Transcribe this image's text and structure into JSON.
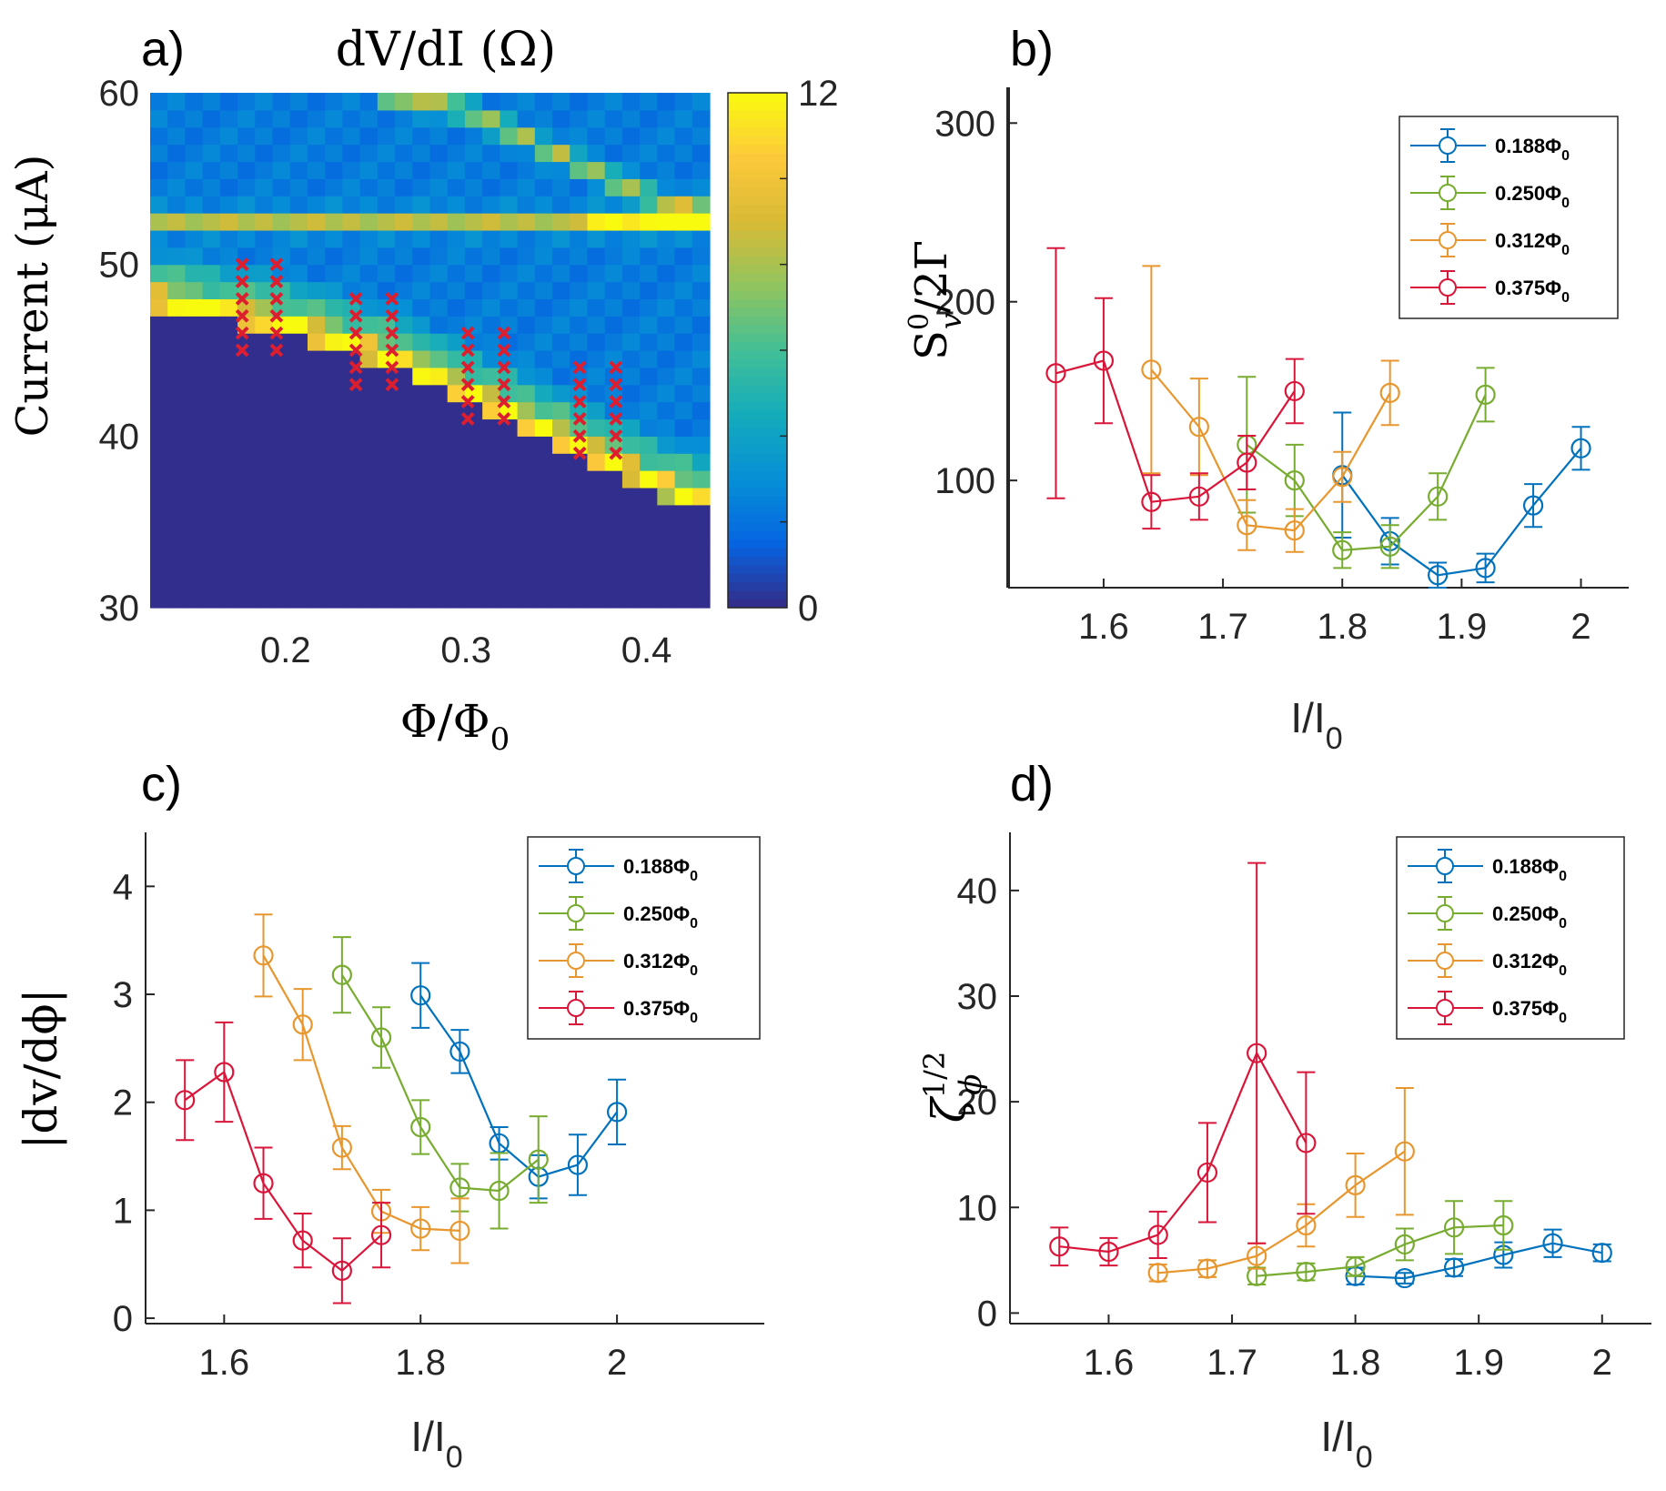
{
  "colors": {
    "blue": "#0072BD",
    "green": "#77AC30",
    "orange": "#EDB120",
    "orange_line": "#E8962E",
    "red": "#D9163A",
    "marker": "#DD1E2F",
    "axis": "#262626"
  },
  "chart_data": [
    {
      "panel": "a)",
      "type": "heatmap",
      "title": "dV/dI (Ω)",
      "xlabel": "Φ/Φ",
      "xlabel_sub": "0",
      "ylabel": "Current (μA)",
      "xlim": [
        0.125,
        0.435
      ],
      "ylim": [
        30,
        60
      ],
      "xticks": [
        0.2,
        0.3,
        0.4
      ],
      "xtick_labels": [
        "0.2",
        "0.3",
        "0.4"
      ],
      "yticks": [
        30,
        40,
        50,
        60
      ],
      "ytick_labels": [
        "30",
        "40",
        "50",
        "60"
      ],
      "colorbar": {
        "min": 0,
        "max": 12,
        "tick_labels": [
          "0",
          "12"
        ],
        "colormap": "parula"
      },
      "bands": [
        {
          "name": "lower band",
          "phi": [
            0.125,
            0.2,
            0.26,
            0.3,
            0.34,
            0.4,
            0.435
          ],
          "current": [
            48,
            46.5,
            44.5,
            42.5,
            40.5,
            37.5,
            36
          ],
          "peak_value": 10
        },
        {
          "name": "upper flat band",
          "phi": [
            0.125,
            0.435
          ],
          "current": [
            52.5,
            52.5
          ],
          "peak_value": 6
        },
        {
          "name": "upper curved band",
          "phi": [
            0.25,
            0.3,
            0.33,
            0.36,
            0.4,
            0.435
          ],
          "current": [
            60,
            59,
            57.5,
            56,
            54,
            53
          ],
          "peak_value": 6
        }
      ],
      "markers": {
        "symbol": "x",
        "columns": [
          {
            "phi": 0.176,
            "current": [
              45,
              46,
              47,
              48,
              49,
              50
            ]
          },
          {
            "phi": 0.195,
            "current": [
              45,
              46,
              47,
              48,
              49,
              50
            ]
          },
          {
            "phi": 0.239,
            "current": [
              43,
              44,
              45,
              46,
              47,
              48
            ]
          },
          {
            "phi": 0.259,
            "current": [
              43,
              44,
              45,
              46,
              47,
              48
            ]
          },
          {
            "phi": 0.301,
            "current": [
              41,
              42,
              43,
              44,
              45,
              46
            ]
          },
          {
            "phi": 0.321,
            "current": [
              41,
              42,
              43,
              44,
              45,
              46
            ]
          },
          {
            "phi": 0.363,
            "current": [
              39,
              40,
              41,
              42,
              43,
              44
            ]
          },
          {
            "phi": 0.383,
            "current": [
              39,
              40,
              41,
              42,
              43,
              44
            ]
          }
        ]
      }
    },
    {
      "panel": "b)",
      "type": "line",
      "xlabel": "I/I",
      "xlabel_sub": "0",
      "ylabel_main": "S",
      "ylabel_sup": "0",
      "ylabel_sub": "v",
      "ylabel_rest": "/2Γ",
      "xlim": [
        1.52,
        2.04
      ],
      "ylim": [
        40,
        320
      ],
      "xticks": [
        1.6,
        1.7,
        1.8,
        1.9,
        2
      ],
      "xtick_labels": [
        "1.6",
        "1.7",
        "1.8",
        "1.9",
        "2"
      ],
      "yticks": [
        100,
        200,
        300
      ],
      "ytick_labels": [
        "100",
        "200",
        "300"
      ],
      "legend": "top-right",
      "series": [
        {
          "name": "0.188Φ",
          "sub": "0",
          "color_key": "blue",
          "x": [
            1.8,
            1.84,
            1.88,
            1.92,
            1.96,
            2.0
          ],
          "y": [
            103,
            66,
            47,
            51,
            86,
            118
          ],
          "err": [
            35,
            13,
            7,
            8,
            12,
            12
          ]
        },
        {
          "name": "0.250Φ",
          "sub": "0",
          "color_key": "green",
          "x": [
            1.72,
            1.76,
            1.8,
            1.84,
            1.88,
            1.92
          ],
          "y": [
            120,
            100,
            61,
            63,
            91,
            148
          ],
          "err": [
            38,
            20,
            10,
            12,
            13,
            15
          ]
        },
        {
          "name": "0.312Φ",
          "sub": "0",
          "color_key": "orange_line",
          "x": [
            1.64,
            1.68,
            1.72,
            1.76,
            1.8,
            1.84
          ],
          "y": [
            162,
            130,
            75,
            72,
            102,
            149
          ],
          "err": [
            58,
            27,
            14,
            12,
            14,
            18
          ]
        },
        {
          "name": "0.375Φ",
          "sub": "0",
          "color_key": "red",
          "x": [
            1.56,
            1.6,
            1.64,
            1.68,
            1.72,
            1.76
          ],
          "y": [
            160,
            167,
            88,
            91,
            110,
            150
          ],
          "err": [
            70,
            35,
            15,
            13,
            15,
            18
          ]
        }
      ]
    },
    {
      "panel": "c)",
      "type": "line",
      "xlabel": "I/I",
      "xlabel_sub": "0",
      "ylabel": "|dv/dϕ|",
      "xlim": [
        1.52,
        2.15
      ],
      "ylim": [
        -0.05,
        4.5
      ],
      "xticks": [
        1.6,
        1.8,
        2
      ],
      "xtick_labels": [
        "1.6",
        "1.8",
        "2"
      ],
      "yticks": [
        0,
        1,
        2,
        3,
        4
      ],
      "ytick_labels": [
        "0",
        "1",
        "2",
        "3",
        "4"
      ],
      "legend": "top-right",
      "series": [
        {
          "name": "0.188Φ",
          "sub": "0",
          "color_key": "blue",
          "x": [
            1.8,
            1.84,
            1.88,
            1.92,
            1.96,
            2.0
          ],
          "y": [
            2.99,
            2.47,
            1.62,
            1.31,
            1.42,
            1.91
          ],
          "err": [
            0.3,
            0.2,
            0.15,
            0.2,
            0.28,
            0.3
          ]
        },
        {
          "name": "0.250Φ",
          "sub": "0",
          "color_key": "green",
          "x": [
            1.72,
            1.76,
            1.8,
            1.84,
            1.88,
            1.92
          ],
          "y": [
            3.18,
            2.6,
            1.77,
            1.21,
            1.18,
            1.47
          ],
          "err": [
            0.35,
            0.28,
            0.25,
            0.22,
            0.35,
            0.4
          ]
        },
        {
          "name": "0.312Φ",
          "sub": "0",
          "color_key": "orange_line",
          "x": [
            1.64,
            1.68,
            1.72,
            1.76,
            1.8,
            1.84
          ],
          "y": [
            3.36,
            2.72,
            1.58,
            0.99,
            0.83,
            0.81
          ],
          "err": [
            0.38,
            0.33,
            0.2,
            0.2,
            0.2,
            0.3
          ]
        },
        {
          "name": "0.375Φ",
          "sub": "0",
          "color_key": "red",
          "x": [
            1.56,
            1.6,
            1.64,
            1.68,
            1.72,
            1.76
          ],
          "y": [
            2.02,
            2.28,
            1.25,
            0.72,
            0.44,
            0.77
          ],
          "err": [
            0.37,
            0.46,
            0.33,
            0.25,
            0.3,
            0.3
          ]
        }
      ]
    },
    {
      "panel": "d)",
      "type": "line",
      "xlabel": "I/I",
      "xlabel_sub": "0",
      "ylabel_main": "ζ",
      "ylabel_sup": "1/2",
      "ylabel_sub": "ϕ",
      "xlim": [
        1.52,
        2.04
      ],
      "ylim": [
        -1,
        45.5
      ],
      "xticks": [
        1.6,
        1.7,
        1.8,
        1.9,
        2
      ],
      "xtick_labels": [
        "1.6",
        "1.7",
        "1.8",
        "1.9",
        "2"
      ],
      "yticks": [
        0,
        10,
        20,
        30,
        40
      ],
      "ytick_labels": [
        "0",
        "10",
        "20",
        "30",
        "40"
      ],
      "legend": "top-right",
      "series": [
        {
          "name": "0.188Φ",
          "sub": "0",
          "color_key": "blue",
          "x": [
            1.8,
            1.84,
            1.88,
            1.92,
            1.96,
            2.0
          ],
          "y": [
            3.5,
            3.3,
            4.3,
            5.5,
            6.6,
            5.7
          ],
          "err": [
            0.8,
            0.5,
            0.8,
            1.2,
            1.3,
            0.8
          ]
        },
        {
          "name": "0.250Φ",
          "sub": "0",
          "color_key": "green",
          "x": [
            1.72,
            1.76,
            1.8,
            1.84,
            1.88,
            1.92
          ],
          "y": [
            3.5,
            3.9,
            4.4,
            6.5,
            8.1,
            8.3
          ],
          "err": [
            0.8,
            0.8,
            0.9,
            1.5,
            2.5,
            2.3
          ]
        },
        {
          "name": "0.312Φ",
          "sub": "0",
          "color_key": "orange_line",
          "x": [
            1.64,
            1.68,
            1.72,
            1.76,
            1.8,
            1.84
          ],
          "y": [
            3.8,
            4.2,
            5.4,
            8.3,
            12.1,
            15.3
          ],
          "err": [
            0.8,
            0.8,
            1.2,
            2.0,
            3.0,
            6.0
          ]
        },
        {
          "name": "0.375Φ",
          "sub": "0",
          "color_key": "red",
          "x": [
            1.56,
            1.6,
            1.64,
            1.68,
            1.72,
            1.76
          ],
          "y": [
            6.3,
            5.8,
            7.4,
            13.3,
            24.6,
            16.1
          ],
          "err": [
            1.8,
            1.3,
            2.2,
            4.7,
            18.0,
            6.7
          ]
        }
      ]
    }
  ]
}
